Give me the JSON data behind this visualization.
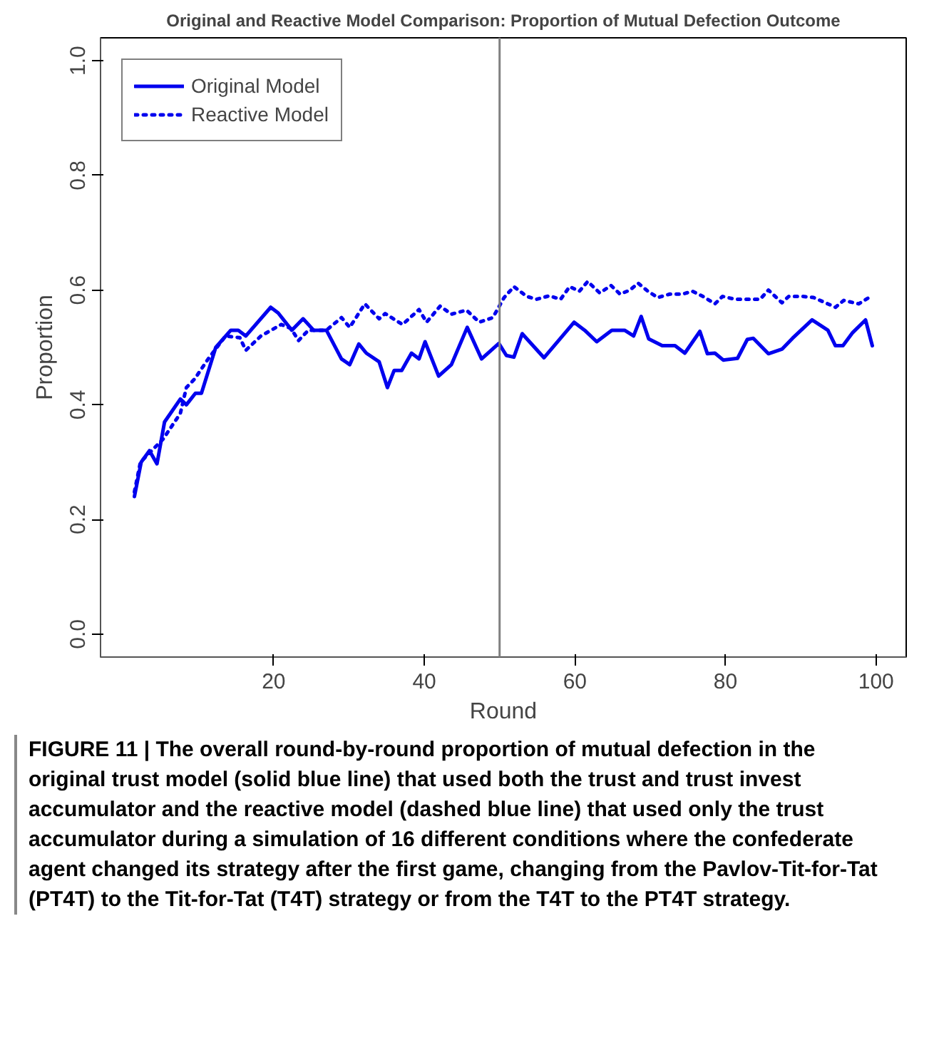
{
  "chart_data": {
    "type": "line",
    "title": "Original and Reactive Model Comparison: Proportion of Mutual Defection Outcome",
    "xlabel": "Round",
    "ylabel": "Proportion",
    "xlim": [
      -3,
      104
    ],
    "ylim": [
      -0.04,
      1.04
    ],
    "xticks": [
      20,
      40,
      60,
      80,
      100
    ],
    "yticks": [
      {
        "value": 0,
        "label": "0.0"
      },
      0.2,
      0.4,
      0.6,
      0.8,
      {
        "value": 1,
        "label": "1.0"
      }
    ],
    "grid": false,
    "legend": "top left",
    "series": [
      {
        "name": "Original Model",
        "color": "#0000ee",
        "line_style": "solid",
        "x": [
          1.5,
          2.4,
          3.5,
          4.5,
          5.5,
          7.6,
          8.4,
          9.6,
          10.4,
          12.3,
          14.3,
          15.3,
          16.3,
          19.6,
          20.6,
          22.4,
          23.9,
          25.3,
          27,
          29,
          30.1,
          31.3,
          32.3,
          34,
          35.1,
          36,
          37,
          38.3,
          39.3,
          40.1,
          41.9,
          43.6,
          45.7,
          47.6,
          49.9,
          50.9,
          51.9,
          53,
          55.9,
          59.9,
          61.3,
          62.9,
          64.9,
          66.6,
          67.8,
          68.8,
          69.8,
          71.6,
          73.3,
          74.6,
          76.6,
          77.6,
          78.6,
          79.7,
          81.6,
          82.9,
          83.7,
          85.7,
          87.5,
          88.9,
          91.5,
          93.6,
          94.6,
          95.6,
          96.9,
          98.6,
          99.5
        ],
        "values": [
          0.24,
          0.3,
          0.32,
          0.297,
          0.37,
          0.41,
          0.4,
          0.42,
          0.42,
          0.5,
          0.53,
          0.53,
          0.52,
          0.57,
          0.56,
          0.53,
          0.55,
          0.53,
          0.53,
          0.48,
          0.47,
          0.506,
          0.49,
          0.475,
          0.43,
          0.46,
          0.46,
          0.49,
          0.48,
          0.51,
          0.45,
          0.47,
          0.535,
          0.48,
          0.507,
          0.486,
          0.483,
          0.524,
          0.482,
          0.544,
          0.53,
          0.51,
          0.53,
          0.53,
          0.52,
          0.554,
          0.515,
          0.503,
          0.503,
          0.49,
          0.528,
          0.489,
          0.49,
          0.478,
          0.481,
          0.514,
          0.516,
          0.489,
          0.497,
          0.516,
          0.548,
          0.53,
          0.503,
          0.503,
          0.526,
          0.548,
          0.503
        ]
      },
      {
        "name": "Reactive Model",
        "color": "#0000ee",
        "line_style": "dotted",
        "x": [
          1.5,
          2.3,
          5.3,
          7.6,
          8.4,
          9.5,
          11.3,
          13.6,
          15.5,
          16.3,
          18.3,
          21,
          22.3,
          23.3,
          24.6,
          27,
          29,
          30.1,
          32.1,
          34,
          34.8,
          37.1,
          39.3,
          40.3,
          42.1,
          43.6,
          45.6,
          47.3,
          49.1,
          50.6,
          51.9,
          53.6,
          54.9,
          56.6,
          58.1,
          59.3,
          60.6,
          61.7,
          63.3,
          64.8,
          66,
          67.3,
          68.4,
          69.7,
          71,
          72.6,
          74.3,
          75.6,
          77,
          78.6,
          79.6,
          81.3,
          83.3,
          84.6,
          85.7,
          87.5,
          88.4,
          90.3,
          91.7,
          93.6,
          94.6,
          95.7,
          97.7,
          99.3
        ],
        "values": [
          0.248,
          0.3,
          0.34,
          0.385,
          0.43,
          0.445,
          0.48,
          0.52,
          0.517,
          0.495,
          0.52,
          0.54,
          0.533,
          0.512,
          0.53,
          0.53,
          0.552,
          0.535,
          0.576,
          0.55,
          0.559,
          0.54,
          0.566,
          0.544,
          0.572,
          0.558,
          0.565,
          0.544,
          0.552,
          0.587,
          0.606,
          0.589,
          0.584,
          0.59,
          0.584,
          0.606,
          0.598,
          0.615,
          0.595,
          0.608,
          0.593,
          0.6,
          0.612,
          0.598,
          0.587,
          0.593,
          0.593,
          0.598,
          0.589,
          0.576,
          0.589,
          0.584,
          0.584,
          0.584,
          0.6,
          0.578,
          0.589,
          0.589,
          0.587,
          0.576,
          0.57,
          0.582,
          0.576,
          0.589
        ]
      }
    ],
    "ref_lines": [
      {
        "axis": "x",
        "value": 50,
        "color": "#808080"
      }
    ],
    "annotations": [
      "FIGURE 11 | The overall round-by-round proportion of mutual defection in the original trust model (solid blue line) that used both the trust and trust invest accumulator and the reactive model (dashed blue line) that used only the trust accumulator during a simulation of 16 different conditions where the confederate agent changed its strategy after the first game, changing from the Pavlov-Tit-for-Tat (PT4T) to the Tit-for-Tat (T4T) strategy or from the T4T to the PT4T strategy."
    ]
  }
}
